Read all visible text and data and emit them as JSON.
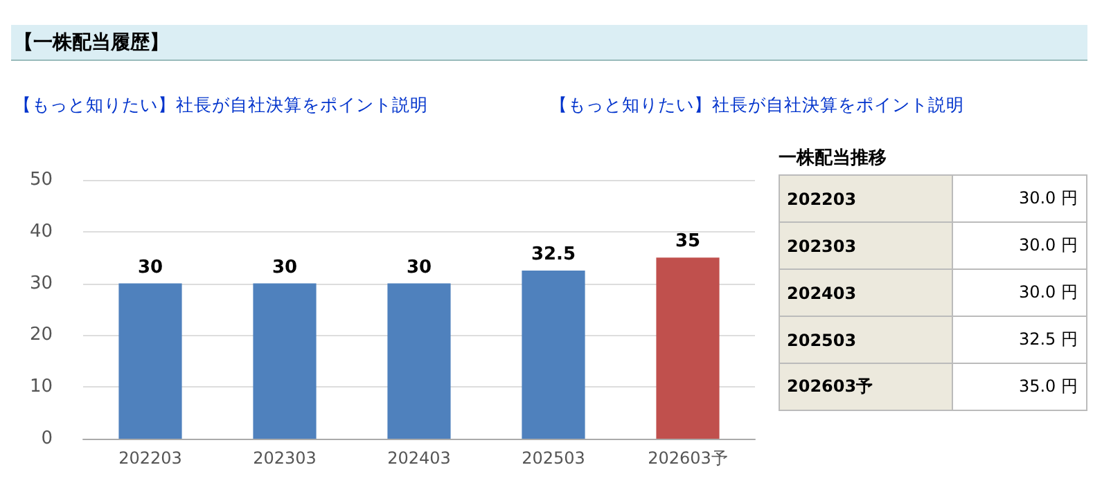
{
  "chart_data": {
    "type": "bar",
    "title": "【一株配当履歴】",
    "annotations": [
      "【もっと知りたい】社長が自社決算をポイント説明",
      "【もっと知りたい】社長が自社決算をポイント説明",
      "一株配当推移",
      "30.0 円",
      "30.0 円",
      "30.0 円",
      "32.5 円",
      "35.0 円"
    ],
    "categories": [
      "202203",
      "202303",
      "202403",
      "202503",
      "202603予"
    ],
    "values": [
      30,
      30,
      30,
      32.5,
      35
    ],
    "colors": [
      "#4f81bd",
      "#4f81bd",
      "#4f81bd",
      "#4f81bd",
      "#c0504d"
    ],
    "ylim": [
      0,
      50
    ],
    "yticks": [
      0,
      10,
      20,
      30,
      40,
      50
    ],
    "grid": "y",
    "data_labels": true
  }
}
